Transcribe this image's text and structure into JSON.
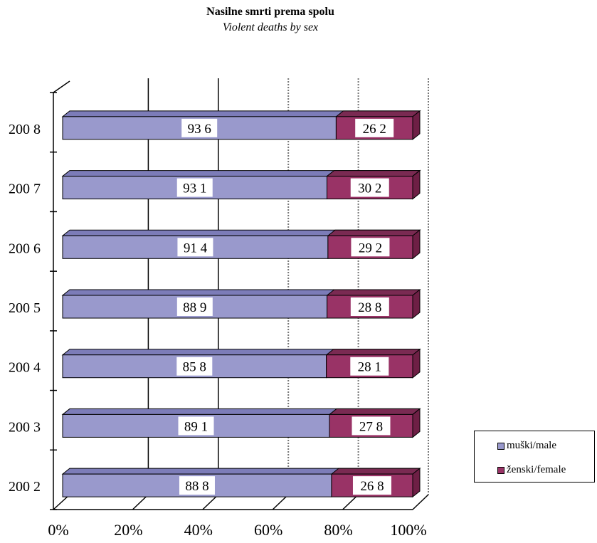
{
  "chart_data": {
    "type": "bar",
    "orientation": "horizontal",
    "stacked": "percent",
    "title": "Nasilne smrti prema spolu",
    "subtitle": "Violent deaths by sex",
    "categories": [
      "2002",
      "2003",
      "2004",
      "2005",
      "2006",
      "2007",
      "2008"
    ],
    "category_labels": [
      "200 2",
      "200 3",
      "200 4",
      "200 5",
      "200 6",
      "200 7",
      "200 8"
    ],
    "series": [
      {
        "name": "muški/male",
        "values": [
          888,
          891,
          858,
          889,
          914,
          931,
          936
        ],
        "value_labels": [
          "88 8",
          "89 1",
          "85 8",
          "88 9",
          "91 4",
          "93 1",
          "93 6"
        ],
        "color": "#9999cc"
      },
      {
        "name": "ženski/female",
        "values": [
          268,
          278,
          281,
          288,
          292,
          302,
          262
        ],
        "value_labels": [
          "26 8",
          "27 8",
          "28 1",
          "28 8",
          "29 2",
          "30 2",
          "26 2"
        ],
        "color": "#993366"
      }
    ],
    "x_ticks": [
      "0%",
      "20%",
      "40%",
      "60%",
      "80%",
      "100%"
    ],
    "xlim": [
      0,
      100
    ],
    "grid": true,
    "legend_position": "right"
  }
}
